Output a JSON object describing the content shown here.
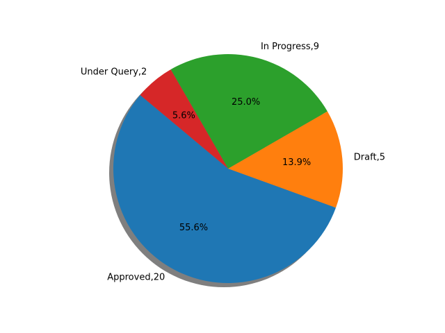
{
  "chart_data": {
    "type": "pie",
    "title": "",
    "categories": [
      "Approved",
      "Draft",
      "In Progress",
      "Under Query"
    ],
    "values": [
      20,
      5,
      9,
      2
    ],
    "labels": [
      "Approved,20",
      "Draft,5",
      "In Progress,9",
      "Under Query,2"
    ],
    "percent_labels": [
      "55.6%",
      "13.9%",
      "25.0%",
      "5.6%"
    ],
    "colors": [
      "#1f77b4",
      "#ff7f0e",
      "#2ca02c",
      "#d62728"
    ],
    "start_angle_deg": 140,
    "shadow": true,
    "legend": "none"
  }
}
